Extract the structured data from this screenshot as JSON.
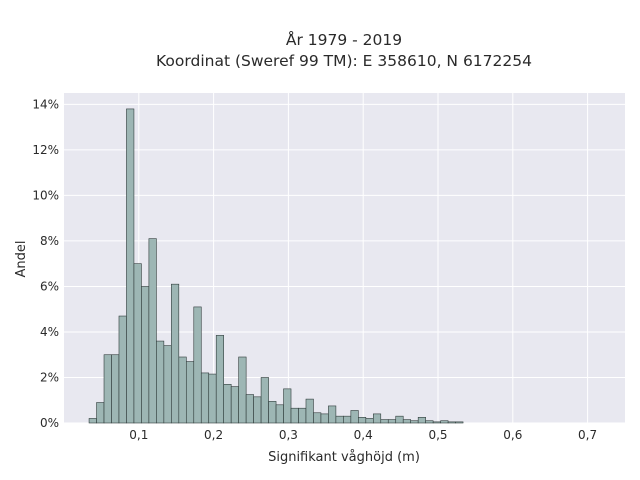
{
  "chart_data": {
    "type": "bar",
    "title_lines": [
      "År 1979 - 2019",
      "Koordinat (Sweref 99 TM): E 358610, N 6172254"
    ],
    "xlabel": "Signifikant våghöjd (m)",
    "ylabel": "Andel",
    "xlim": [
      0.0,
      0.75
    ],
    "ylim": [
      0,
      14.5
    ],
    "x_ticks": [
      {
        "value": 0.1,
        "label": "0,1"
      },
      {
        "value": 0.2,
        "label": "0,2"
      },
      {
        "value": 0.3,
        "label": "0,3"
      },
      {
        "value": 0.4,
        "label": "0,4"
      },
      {
        "value": 0.5,
        "label": "0,5"
      },
      {
        "value": 0.6,
        "label": "0,6"
      },
      {
        "value": 0.7,
        "label": "0,7"
      }
    ],
    "y_ticks": [
      {
        "value": 0,
        "label": "0%"
      },
      {
        "value": 2,
        "label": "2%"
      },
      {
        "value": 4,
        "label": "4%"
      },
      {
        "value": 6,
        "label": "6%"
      },
      {
        "value": 8,
        "label": "8%"
      },
      {
        "value": 10,
        "label": "10%"
      },
      {
        "value": 12,
        "label": "12%"
      },
      {
        "value": 14,
        "label": "14%"
      }
    ],
    "bin_start": 0.0335,
    "bin_width": 0.01,
    "values": [
      0.2,
      0.9,
      3.0,
      3.0,
      4.7,
      13.8,
      7.0,
      6.0,
      8.1,
      3.6,
      3.4,
      6.1,
      2.9,
      2.7,
      5.1,
      2.2,
      2.15,
      3.85,
      1.7,
      1.6,
      2.9,
      1.25,
      1.15,
      2.0,
      0.95,
      0.8,
      1.5,
      0.65,
      0.65,
      1.05,
      0.45,
      0.4,
      0.75,
      0.3,
      0.3,
      0.55,
      0.25,
      0.2,
      0.4,
      0.15,
      0.15,
      0.3,
      0.15,
      0.1,
      0.25,
      0.1,
      0.05,
      0.1,
      0.05,
      0.05
    ],
    "grid": true,
    "colors": {
      "plot_background": "#e8e8f0",
      "grid": "#ffffff",
      "bar_fill": "#9db6b4",
      "bar_edge": "#2f3b3a"
    }
  }
}
